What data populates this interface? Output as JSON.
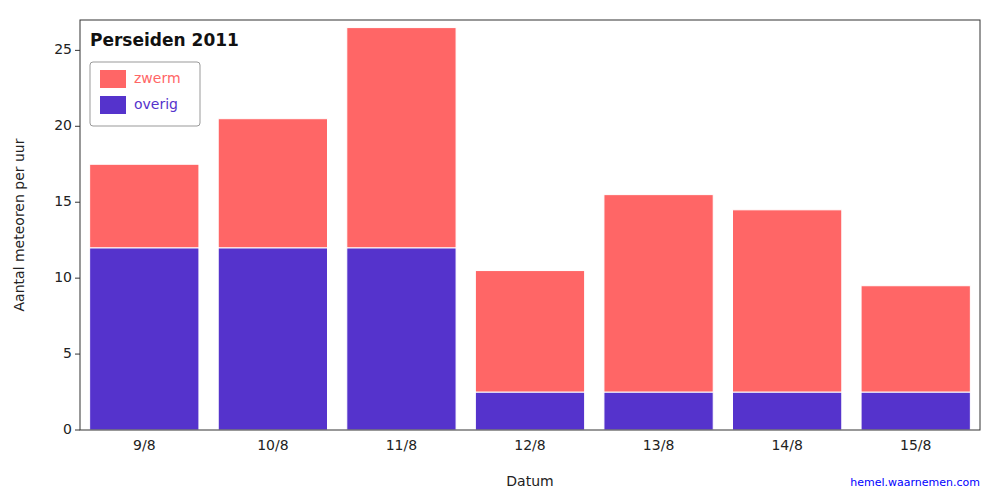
{
  "chart_data": {
    "type": "bar",
    "stacked": true,
    "title": "Perseiden 2011",
    "xlabel": "Datum",
    "ylabel": "Aantal meteoren per uur",
    "categories": [
      "9/8",
      "10/8",
      "11/8",
      "12/8",
      "13/8",
      "14/8",
      "15/8"
    ],
    "series": [
      {
        "name": "overig",
        "color": "#5533CC",
        "values": [
          12.0,
          12.0,
          12.0,
          2.5,
          2.5,
          2.5,
          2.5
        ]
      },
      {
        "name": "zwerm",
        "color": "#FF6666",
        "values": [
          5.5,
          8.5,
          14.5,
          8.0,
          13.0,
          12.0,
          7.0
        ]
      }
    ],
    "ylim": [
      0,
      27
    ],
    "yticks": [
      0,
      5,
      10,
      15,
      20,
      25
    ],
    "grid": false,
    "legend": "upper left",
    "annotations": [
      {
        "text": "hemel.waarnemen.com",
        "color": "blue"
      }
    ]
  }
}
